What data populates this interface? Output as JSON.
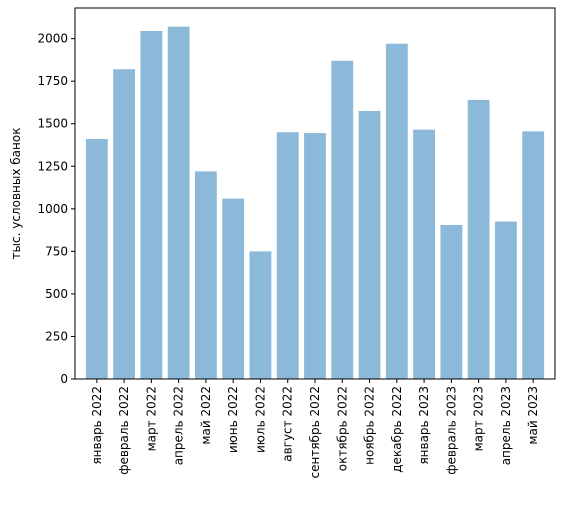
{
  "chart_data": {
    "type": "bar",
    "title": "",
    "xlabel": "",
    "ylabel": "тыс. условных банок",
    "categories": [
      "январь 2022",
      "февраль 2022",
      "март 2022",
      "апрель 2022",
      "май 2022",
      "июнь 2022",
      "июль 2022",
      "август 2022",
      "сентябрь 2022",
      "октябрь 2022",
      "ноябрь 2022",
      "декабрь 2022",
      "январь 2023",
      "февраль 2023",
      "март 2023",
      "апрель 2023",
      "май 2023"
    ],
    "values": [
      1410,
      1820,
      2045,
      2070,
      1220,
      1060,
      750,
      1450,
      1445,
      1870,
      1575,
      1970,
      1465,
      905,
      1640,
      925,
      1455
    ],
    "ylim": [
      0,
      2180
    ],
    "yticks": [
      0,
      250,
      500,
      750,
      1000,
      1250,
      1500,
      1750,
      2000
    ],
    "ytick_labels": [
      "0",
      "250",
      "500",
      "750",
      "1000",
      "1250",
      "1500",
      "1750",
      "2000"
    ],
    "bar_color": "#8cb8da",
    "grid": false,
    "legend": "none"
  }
}
